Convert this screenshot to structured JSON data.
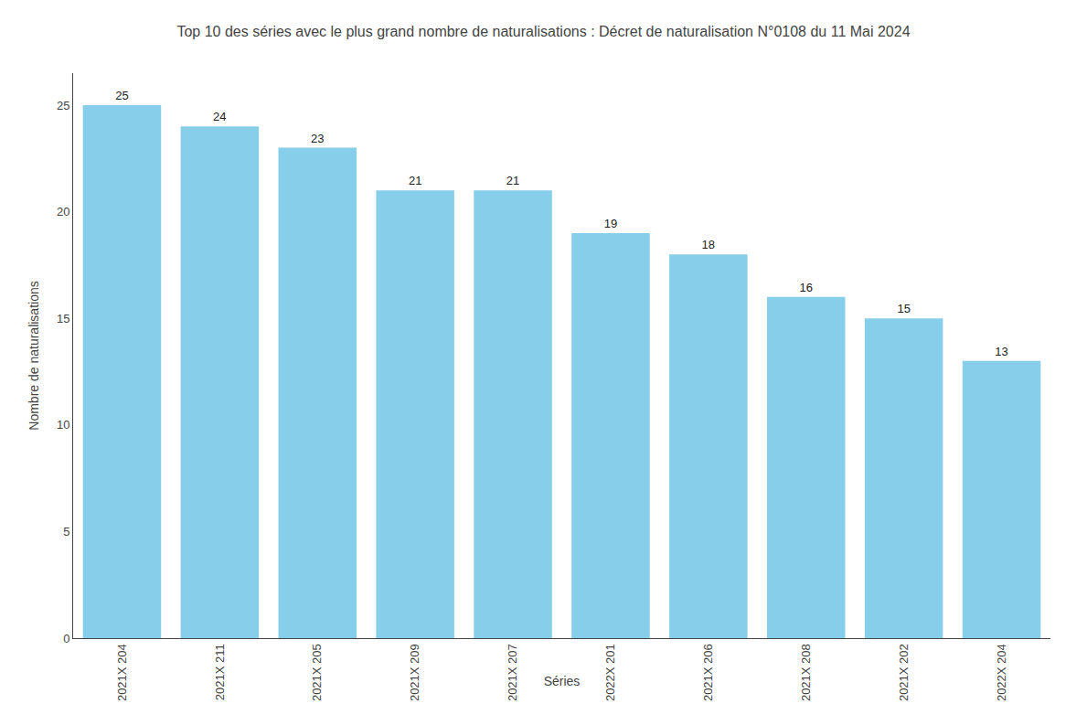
{
  "chart_data": {
    "type": "bar",
    "title": "Top 10 des séries avec le plus grand nombre de naturalisations : Décret de naturalisation N°0108 du 11 Mai 2024",
    "xlabel": "Séries",
    "ylabel": "Nombre de naturalisations",
    "categories": [
      "2021X 204",
      "2021X 211",
      "2021X 205",
      "2021X 209",
      "2021X 207",
      "2022X 201",
      "2021X 206",
      "2021X 208",
      "2021X 202",
      "2022X 204"
    ],
    "values": [
      25,
      24,
      23,
      21,
      21,
      19,
      18,
      16,
      15,
      13
    ],
    "color": "#87CEEB",
    "ylim": [
      0,
      26.5
    ],
    "yticks": [
      0,
      5,
      10,
      15,
      20,
      25
    ],
    "grid": false,
    "data_labels": true
  }
}
